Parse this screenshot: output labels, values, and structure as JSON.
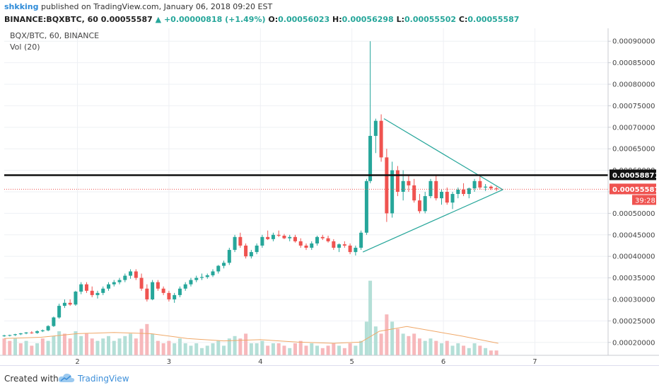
{
  "header": {
    "user": "shkking",
    "published": "published on TradingView.com, January 06, 2018 09:20 EST",
    "symbol": "BINANCE:BQXBTC, 60",
    "last": "0.00055587",
    "change": "+0.00000818 (+1.49%)",
    "o_label": "O:",
    "o": "0.00056023",
    "h_label": "H:",
    "h": "0.00056298",
    "l_label": "L:",
    "l": "0.00055502",
    "c_label": "C:",
    "c": "0.00055587"
  },
  "legend": {
    "pair": "BQX/BTC, 60, BINANCE",
    "volume": "Vol (20)"
  },
  "footer": {
    "created": "Created with",
    "brand": "TradingView"
  },
  "colors": {
    "up": "#26a69a",
    "down": "#ef5350",
    "vol_up": "#b4dfd7",
    "vol_down": "#f7b8bb",
    "ma": "#f0a868",
    "triangle": "#26a69a"
  },
  "chart_data": {
    "type": "candlestick",
    "x_ticks": [
      "2",
      "3",
      "4",
      "5",
      "6",
      "7"
    ],
    "x_range": [
      1.2,
      7.8
    ],
    "y_range": [
      0.00017,
      0.00093
    ],
    "y_ticks": [
      "0.00020000",
      "0.00025000",
      "0.00030000",
      "0.00035000",
      "0.00040000",
      "0.00045000",
      "0.00050000",
      "0.00055000",
      "0.00060000",
      "0.00065000",
      "0.00070000",
      "0.00075000",
      "0.00080000",
      "0.00085000",
      "0.00090000"
    ],
    "tick_values": [
      0.0002,
      0.00025,
      0.0003,
      0.00035,
      0.0004,
      0.00045,
      0.0005,
      0.00055,
      0.0006,
      0.00065,
      0.0007,
      0.00075,
      0.0008,
      0.00085,
      0.0009
    ],
    "horizontal_line": {
      "value": 0.00058871,
      "label": "0.00058871"
    },
    "last_price": {
      "value": 0.00055587,
      "label": "0.00055587",
      "countdown": "39:28"
    },
    "triangle": {
      "upper": [
        [
          5.35,
          0.00072
        ],
        [
          6.65,
          0.000555
        ]
      ],
      "lower": [
        [
          5.12,
          0.00041
        ],
        [
          6.65,
          0.000555
        ]
      ]
    },
    "candles": [
      [
        1.2,
        0.000215,
        0.000218,
        0.000213,
        0.000216,
        5
      ],
      [
        1.26,
        0.000216,
        0.000218,
        0.000214,
        0.000217,
        4
      ],
      [
        1.32,
        0.000217,
        0.00022,
        0.000215,
        0.000219,
        6
      ],
      [
        1.38,
        0.000219,
        0.000222,
        0.000217,
        0.000221,
        5
      ],
      [
        1.44,
        0.000221,
        0.000224,
        0.000219,
        0.000223,
        4
      ],
      [
        1.5,
        0.000223,
        0.000226,
        0.00022,
        0.000222,
        3
      ],
      [
        1.56,
        0.000222,
        0.000228,
        0.00022,
        0.000226,
        5
      ],
      [
        1.62,
        0.000226,
        0.00023,
        0.000224,
        0.000228,
        6
      ],
      [
        1.68,
        0.000228,
        0.00024,
        0.000226,
        0.000238,
        8
      ],
      [
        1.74,
        0.000238,
        0.00026,
        0.000236,
        0.000258,
        9
      ],
      [
        1.8,
        0.000258,
        0.00029,
        0.000255,
        0.000285,
        12
      ],
      [
        1.86,
        0.000285,
        0.0003,
        0.00028,
        0.000292,
        10
      ],
      [
        1.92,
        0.000292,
        0.0003,
        0.000285,
        0.000288,
        7
      ],
      [
        1.98,
        0.000288,
        0.00032,
        0.000285,
        0.000318,
        11
      ],
      [
        2.04,
        0.000318,
        0.00034,
        0.000312,
        0.000335,
        9
      ],
      [
        2.1,
        0.000335,
        0.00034,
        0.000315,
        0.00032,
        8
      ],
      [
        2.16,
        0.00032,
        0.00033,
        0.000305,
        0.00031,
        7
      ],
      [
        2.22,
        0.00031,
        0.00032,
        0.000302,
        0.000315,
        6
      ],
      [
        2.28,
        0.000315,
        0.00033,
        0.00031,
        0.000325,
        7
      ],
      [
        2.34,
        0.000325,
        0.00034,
        0.00032,
        0.000335,
        8
      ],
      [
        2.4,
        0.000335,
        0.000345,
        0.00033,
        0.00034,
        7
      ],
      [
        2.46,
        0.00034,
        0.00035,
        0.000335,
        0.000345,
        6
      ],
      [
        2.52,
        0.000345,
        0.00036,
        0.00034,
        0.000355,
        8
      ],
      [
        2.58,
        0.000355,
        0.00037,
        0.000348,
        0.000365,
        7
      ],
      [
        2.64,
        0.000365,
        0.00037,
        0.000345,
        0.00035,
        6
      ],
      [
        2.7,
        0.00035,
        0.00036,
        0.00032,
        0.000325,
        9
      ],
      [
        2.76,
        0.000325,
        0.000335,
        0.000295,
        0.0003,
        10
      ],
      [
        2.82,
        0.0003,
        0.000345,
        0.000298,
        0.00034,
        11
      ],
      [
        2.88,
        0.00034,
        0.000345,
        0.00032,
        0.000325,
        7
      ],
      [
        2.94,
        0.000325,
        0.00033,
        0.00031,
        0.000315,
        6
      ],
      [
        3.0,
        0.000315,
        0.00032,
        0.000295,
        0.0003,
        7
      ],
      [
        3.06,
        0.0003,
        0.000315,
        0.000292,
        0.00031,
        6
      ],
      [
        3.12,
        0.00031,
        0.00033,
        0.000305,
        0.000325,
        7
      ],
      [
        3.18,
        0.000325,
        0.00034,
        0.00032,
        0.000335,
        6
      ],
      [
        3.24,
        0.000335,
        0.00035,
        0.00033,
        0.000345,
        5
      ],
      [
        3.3,
        0.000345,
        0.000355,
        0.00034,
        0.00035,
        5
      ],
      [
        3.36,
        0.00035,
        0.00036,
        0.000345,
        0.000352,
        4
      ],
      [
        3.42,
        0.000352,
        0.00036,
        0.000348,
        0.000356,
        4
      ],
      [
        3.48,
        0.000356,
        0.00037,
        0.000352,
        0.000365,
        5
      ],
      [
        3.54,
        0.000365,
        0.00038,
        0.00036,
        0.000378,
        6
      ],
      [
        3.6,
        0.000378,
        0.00039,
        0.000372,
        0.000385,
        6
      ],
      [
        3.66,
        0.000385,
        0.00042,
        0.00038,
        0.000415,
        8
      ],
      [
        3.72,
        0.000415,
        0.00045,
        0.00041,
        0.000445,
        9
      ],
      [
        3.78,
        0.000445,
        0.000455,
        0.00042,
        0.000425,
        8
      ],
      [
        3.84,
        0.000425,
        0.00043,
        0.000395,
        0.0004,
        9
      ],
      [
        3.9,
        0.0004,
        0.000415,
        0.000395,
        0.00041,
        6
      ],
      [
        3.96,
        0.00041,
        0.00043,
        0.000405,
        0.000425,
        6
      ],
      [
        4.02,
        0.000425,
        0.00045,
        0.00042,
        0.000445,
        7
      ],
      [
        4.08,
        0.000445,
        0.00046,
        0.000438,
        0.00044,
        6
      ],
      [
        4.14,
        0.00044,
        0.000455,
        0.000435,
        0.00045,
        6
      ],
      [
        4.2,
        0.00045,
        0.00046,
        0.000445,
        0.000448,
        5
      ],
      [
        4.26,
        0.000448,
        0.000452,
        0.00044,
        0.000442,
        5
      ],
      [
        4.32,
        0.000442,
        0.00045,
        0.000435,
        0.000445,
        4
      ],
      [
        4.38,
        0.000445,
        0.00045,
        0.000432,
        0.000435,
        5
      ],
      [
        4.44,
        0.000435,
        0.000442,
        0.00042,
        0.000425,
        6
      ],
      [
        4.5,
        0.000425,
        0.00043,
        0.000415,
        0.00042,
        5
      ],
      [
        4.56,
        0.00042,
        0.000435,
        0.000415,
        0.00043,
        5
      ],
      [
        4.62,
        0.00043,
        0.000448,
        0.000425,
        0.000445,
        5
      ],
      [
        4.68,
        0.000445,
        0.00045,
        0.000438,
        0.000442,
        4
      ],
      [
        4.74,
        0.000442,
        0.000448,
        0.000432,
        0.000435,
        4
      ],
      [
        4.8,
        0.000435,
        0.00044,
        0.000415,
        0.00042,
        5
      ],
      [
        4.86,
        0.00042,
        0.00043,
        0.00041,
        0.000428,
        4
      ],
      [
        4.92,
        0.000428,
        0.000435,
        0.00042,
        0.000425,
        4
      ],
      [
        4.98,
        0.000425,
        0.00043,
        0.000405,
        0.00041,
        5
      ],
      [
        5.04,
        0.00041,
        0.000425,
        0.000402,
        0.00042,
        4
      ],
      [
        5.1,
        0.00042,
        0.00046,
        0.000415,
        0.000455,
        7
      ],
      [
        5.16,
        0.000455,
        0.00058,
        0.00045,
        0.000575,
        16
      ],
      [
        5.2,
        0.000575,
        0.0009,
        0.00057,
        0.00068,
        30
      ],
      [
        5.26,
        0.00068,
        0.00072,
        0.00064,
        0.000715,
        14
      ],
      [
        5.32,
        0.000715,
        0.00073,
        0.00062,
        0.00063,
        11
      ],
      [
        5.38,
        0.00063,
        0.00065,
        0.00048,
        0.0005,
        18
      ],
      [
        5.44,
        0.0005,
        0.00062,
        0.00049,
        0.0006,
        15
      ],
      [
        5.5,
        0.0006,
        0.00061,
        0.00054,
        0.00055,
        12
      ],
      [
        5.56,
        0.00055,
        0.0006,
        0.00053,
        0.000575,
        10
      ],
      [
        5.62,
        0.000575,
        0.00059,
        0.00055,
        0.000565,
        9
      ],
      [
        5.68,
        0.000565,
        0.00058,
        0.000525,
        0.00053,
        9
      ],
      [
        5.74,
        0.00053,
        0.000545,
        0.0005,
        0.000505,
        8
      ],
      [
        5.8,
        0.000505,
        0.00055,
        0.0005,
        0.00054,
        7
      ],
      [
        5.86,
        0.00054,
        0.00058,
        0.000535,
        0.000575,
        8
      ],
      [
        5.92,
        0.000575,
        0.00059,
        0.00053,
        0.000535,
        7
      ],
      [
        5.98,
        0.000535,
        0.000555,
        0.00052,
        0.00055,
        6
      ],
      [
        6.04,
        0.00055,
        0.00056,
        0.00052,
        0.000525,
        6
      ],
      [
        6.1,
        0.000525,
        0.00055,
        0.00051,
        0.000545,
        5
      ],
      [
        6.16,
        0.000545,
        0.00056,
        0.000535,
        0.000555,
        5
      ],
      [
        6.22,
        0.000555,
        0.00057,
        0.00054,
        0.000545,
        5
      ],
      [
        6.28,
        0.000545,
        0.00056,
        0.000535,
        0.000558,
        4
      ],
      [
        6.34,
        0.000558,
        0.00058,
        0.00055,
        0.000575,
        5
      ],
      [
        6.4,
        0.000575,
        0.00059,
        0.000555,
        0.00056,
        4
      ],
      [
        6.46,
        0.00056,
        0.000568,
        0.000552,
        0.000562,
        3
      ],
      [
        6.52,
        0.000562,
        0.000565,
        0.000554,
        0.000558,
        3
      ],
      [
        6.58,
        0.000558,
        0.000562,
        0.000552,
        0.000556,
        3
      ]
    ],
    "volumes": [
      [
        1.2,
        7,
        0
      ],
      [
        1.26,
        6,
        0
      ],
      [
        1.32,
        7,
        1
      ],
      [
        1.38,
        5,
        0
      ],
      [
        1.44,
        6,
        1
      ],
      [
        1.5,
        4,
        0
      ],
      [
        1.56,
        5,
        1
      ],
      [
        1.62,
        7,
        0
      ],
      [
        1.68,
        6,
        1
      ],
      [
        1.74,
        8,
        1
      ],
      [
        1.8,
        10,
        1
      ],
      [
        1.86,
        9,
        0
      ],
      [
        1.92,
        7,
        0
      ],
      [
        1.98,
        10,
        1
      ],
      [
        2.04,
        8,
        1
      ],
      [
        2.1,
        9,
        0
      ],
      [
        2.16,
        7,
        0
      ],
      [
        2.22,
        6,
        1
      ],
      [
        2.28,
        7,
        1
      ],
      [
        2.34,
        8,
        1
      ],
      [
        2.4,
        6,
        1
      ],
      [
        2.46,
        7,
        1
      ],
      [
        2.52,
        8,
        1
      ],
      [
        2.58,
        9,
        1
      ],
      [
        2.64,
        7,
        0
      ],
      [
        2.7,
        11,
        0
      ],
      [
        2.76,
        13,
        0
      ],
      [
        2.82,
        9,
        1
      ],
      [
        2.88,
        6,
        0
      ],
      [
        2.94,
        5,
        0
      ],
      [
        3.0,
        6,
        0
      ],
      [
        3.06,
        5,
        1
      ],
      [
        3.12,
        7,
        1
      ],
      [
        3.18,
        5,
        1
      ],
      [
        3.24,
        4,
        1
      ],
      [
        3.3,
        5,
        1
      ],
      [
        3.36,
        3,
        1
      ],
      [
        3.42,
        4,
        1
      ],
      [
        3.48,
        5,
        1
      ],
      [
        3.54,
        6,
        1
      ],
      [
        3.6,
        4,
        1
      ],
      [
        3.66,
        7,
        1
      ],
      [
        3.72,
        8,
        1
      ],
      [
        3.78,
        7,
        0
      ],
      [
        3.84,
        9,
        0
      ],
      [
        3.9,
        5,
        1
      ],
      [
        3.96,
        5,
        1
      ],
      [
        4.02,
        6,
        1
      ],
      [
        4.08,
        4,
        0
      ],
      [
        4.14,
        5,
        1
      ],
      [
        4.2,
        5,
        0
      ],
      [
        4.26,
        4,
        0
      ],
      [
        4.32,
        3,
        1
      ],
      [
        4.38,
        5,
        0
      ],
      [
        4.44,
        6,
        0
      ],
      [
        4.5,
        4,
        0
      ],
      [
        4.56,
        5,
        1
      ],
      [
        4.62,
        4,
        1
      ],
      [
        4.68,
        3,
        0
      ],
      [
        4.74,
        4,
        0
      ],
      [
        4.8,
        5,
        0
      ],
      [
        4.86,
        4,
        1
      ],
      [
        4.92,
        3,
        0
      ],
      [
        4.98,
        5,
        0
      ],
      [
        5.04,
        4,
        1
      ],
      [
        5.1,
        6,
        1
      ],
      [
        5.16,
        14,
        1
      ],
      [
        5.2,
        31,
        1
      ],
      [
        5.26,
        12,
        1
      ],
      [
        5.32,
        9,
        0
      ],
      [
        5.38,
        17,
        0
      ],
      [
        5.44,
        14,
        1
      ],
      [
        5.5,
        11,
        0
      ],
      [
        5.56,
        9,
        1
      ],
      [
        5.62,
        8,
        0
      ],
      [
        5.68,
        9,
        0
      ],
      [
        5.74,
        7,
        0
      ],
      [
        5.8,
        6,
        1
      ],
      [
        5.86,
        7,
        1
      ],
      [
        5.92,
        6,
        0
      ],
      [
        5.98,
        5,
        1
      ],
      [
        6.04,
        6,
        0
      ],
      [
        6.1,
        4,
        1
      ],
      [
        6.16,
        5,
        1
      ],
      [
        6.22,
        4,
        0
      ],
      [
        6.28,
        3,
        1
      ],
      [
        6.34,
        5,
        1
      ],
      [
        6.4,
        4,
        0
      ],
      [
        6.46,
        3,
        1
      ],
      [
        6.52,
        2,
        0
      ],
      [
        6.58,
        2,
        0
      ]
    ],
    "vol_ma": [
      [
        1.2,
        7
      ],
      [
        1.6,
        7.5
      ],
      [
        2.0,
        9
      ],
      [
        2.4,
        9.5
      ],
      [
        2.8,
        9
      ],
      [
        3.2,
        7
      ],
      [
        3.6,
        6
      ],
      [
        4.0,
        6.5
      ],
      [
        4.4,
        5.5
      ],
      [
        4.8,
        5
      ],
      [
        5.1,
        5.5
      ],
      [
        5.3,
        10
      ],
      [
        5.6,
        12
      ],
      [
        5.9,
        10
      ],
      [
        6.2,
        8
      ],
      [
        6.6,
        5
      ]
    ]
  }
}
